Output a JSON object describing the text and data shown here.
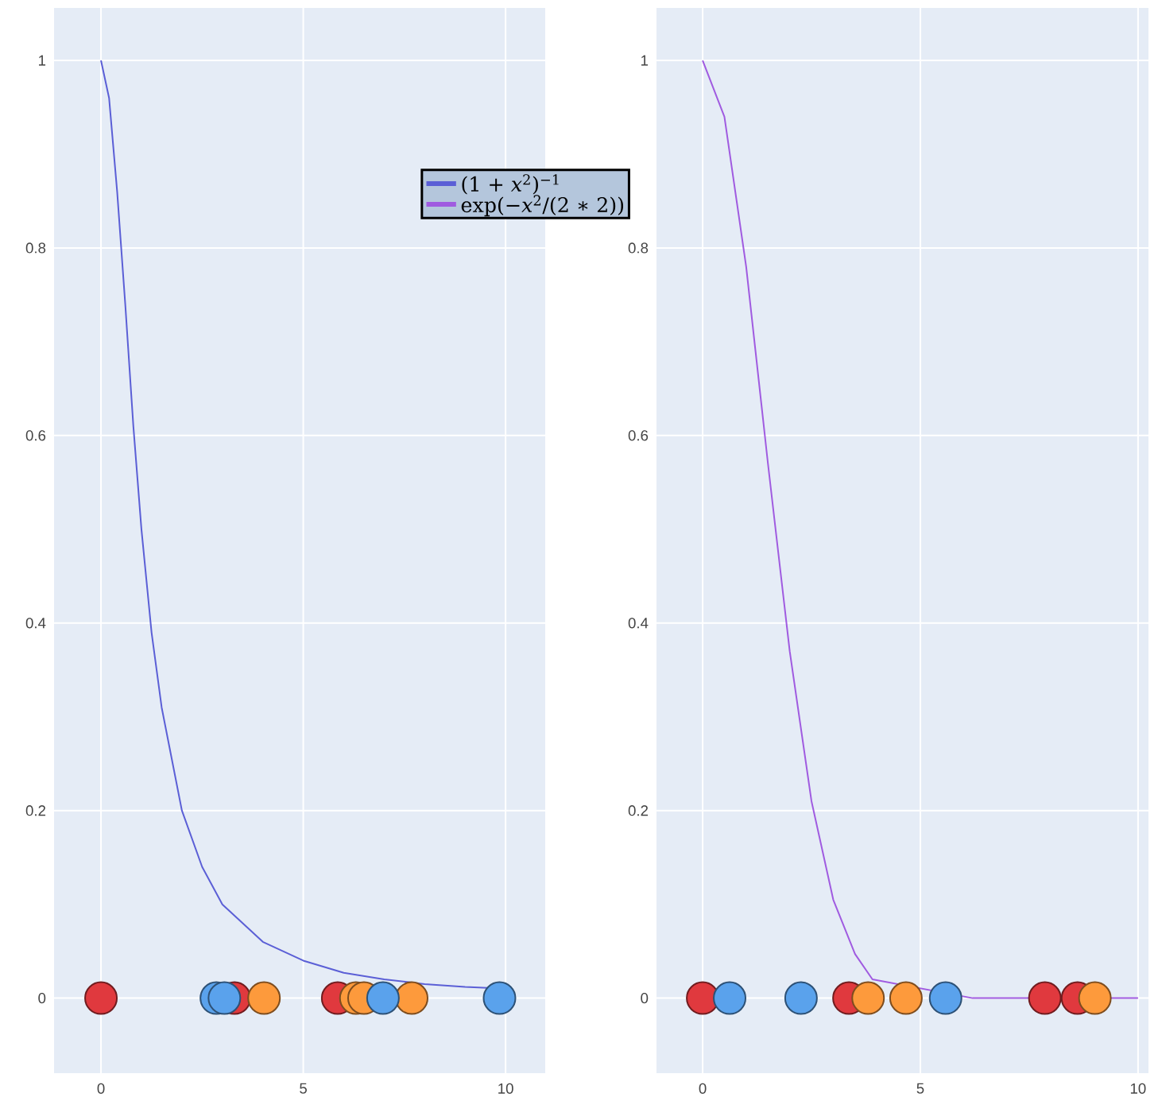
{
  "chart_data": [
    {
      "type": "line",
      "xlim": [
        -1.16,
        10.98
      ],
      "ylim": [
        -0.08,
        1.056
      ],
      "xticks": [
        0,
        5,
        10
      ],
      "yticks": [
        0,
        0.2,
        0.4,
        0.6,
        0.8,
        1
      ],
      "grid": true,
      "legend": "top right",
      "series": [
        {
          "name": "(1 + *x*$^{2}$)$^{−1}$",
          "color": "#5b5fd6",
          "x": [
            0,
            0.2,
            0.4,
            0.6,
            0.8,
            1,
            1.25,
            1.5,
            2,
            2.5,
            3,
            4,
            5,
            6,
            7,
            8,
            9,
            10
          ],
          "values": [
            1,
            0.96,
            0.86,
            0.74,
            0.61,
            0.5,
            0.39,
            0.31,
            0.2,
            0.14,
            0.1,
            0.06,
            0.04,
            0.027,
            0.02,
            0.015,
            0.012,
            0.01
          ]
        },
        {
          "type": "scatter",
          "marker": "circle",
          "color": "#e0393e",
          "x": [
            0,
            3.3,
            5.85
          ],
          "values": [
            0,
            0,
            0
          ]
        },
        {
          "type": "scatter",
          "marker": "circle",
          "color": "#fd9a3c",
          "x": [
            4.03,
            6.3,
            6.5,
            7.68
          ],
          "values": [
            0,
            0,
            0,
            0
          ]
        },
        {
          "type": "scatter",
          "marker": "circle",
          "color": "#5aa2ec",
          "x": [
            2.85,
            3.05,
            6.97,
            9.85
          ],
          "values": [
            0,
            0,
            0,
            0
          ]
        }
      ]
    },
    {
      "type": "line",
      "xlim": [
        -1.06,
        10.24
      ],
      "ylim": [
        -0.08,
        1.056
      ],
      "xticks": [
        0,
        5,
        10
      ],
      "yticks": [
        0,
        0.2,
        0.4,
        0.6,
        0.8,
        1
      ],
      "grid": true,
      "series": [
        {
          "name": "exp(−*x*$^{2}$/(2 ∗ 2))",
          "color": "#a05be0",
          "x": [
            0,
            0.5,
            1,
            1.5,
            2,
            2.5,
            3,
            3.5,
            3.9,
            6.2,
            10
          ],
          "values": [
            1,
            0.94,
            0.78,
            0.57,
            0.37,
            0.21,
            0.105,
            0.047,
            0.02,
            0,
            0
          ]
        },
        {
          "type": "scatter",
          "marker": "circle",
          "color": "#e0393e",
          "x": [
            0,
            3.36,
            7.86,
            8.61
          ],
          "values": [
            0,
            0,
            0,
            0
          ]
        },
        {
          "type": "scatter",
          "marker": "circle",
          "color": "#fd9a3c",
          "x": [
            3.8,
            4.67,
            9.01
          ],
          "values": [
            0,
            0,
            0
          ]
        },
        {
          "type": "scatter",
          "marker": "circle",
          "color": "#5aa2ec",
          "x": [
            0.62,
            2.26,
            5.58
          ],
          "values": [
            0,
            0,
            0
          ]
        }
      ]
    }
  ]
}
